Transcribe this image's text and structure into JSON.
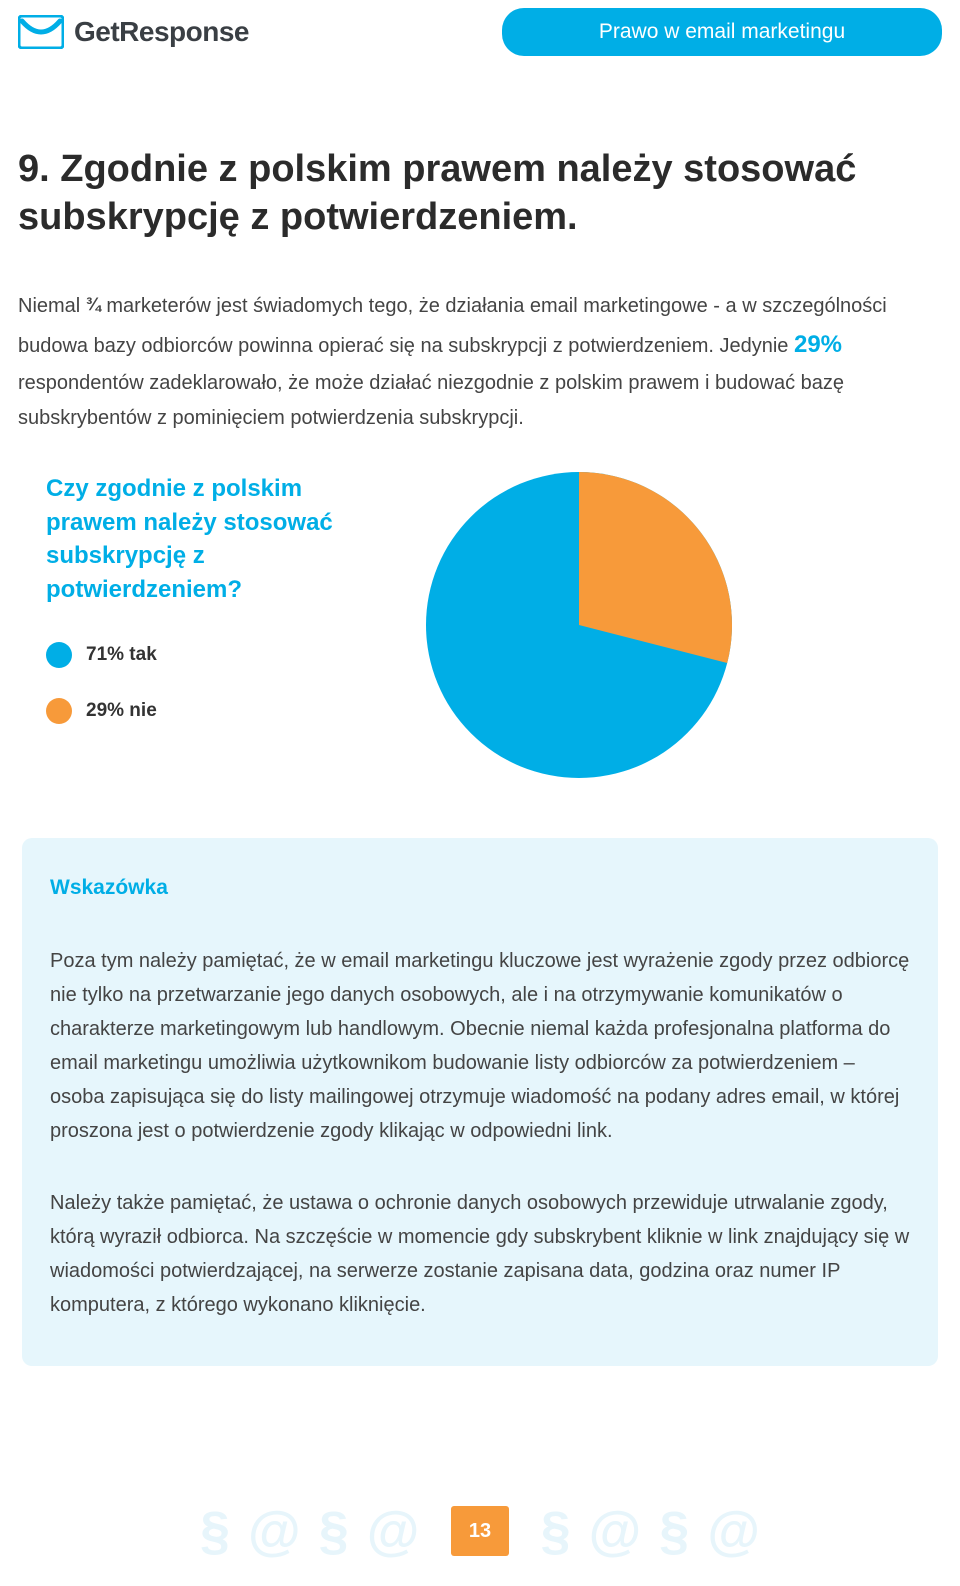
{
  "header": {
    "brand": "GetResponse",
    "pill": "Prawo w email marketingu"
  },
  "section": {
    "heading": "9. Zgodnie z polskim prawem należy stosować subskrypcję z potwierdzeniem.",
    "intro_pre": "Niemal ",
    "intro_frac": "¾",
    "intro_mid": " marketerów jest świadomych tego, że działania email marketingowe  - a w szczególności budowa bazy odbiorców powinna opierać się na subskrypcji z potwierdzeniem. Jedynie ",
    "intro_highlight": "29%",
    "intro_post": " respondentów zadeklarowało, że może działać niezgodnie z polskim prawem i budować bazę subskrybentów z pominięciem potwierdzenia subskrypcji."
  },
  "chart": {
    "question": "Czy zgodnie z polskim prawem należy stosować subskrypcję z potwierdzeniem?",
    "type": "pie",
    "radius": 153,
    "background_color": "#ffffff",
    "slices": [
      {
        "label": "71% tak",
        "value": 71,
        "color": "#00aee6"
      },
      {
        "label": "29% nie",
        "value": 29,
        "color": "#f79a3a"
      }
    ]
  },
  "tip": {
    "title": "Wskazówka",
    "p1": "Poza tym należy pamiętać, że w email marketingu kluczowe jest wyrażenie zgody przez odbiorcę nie tylko na przetwarzanie jego danych osobowych, ale i na otrzymywanie komunikatów o charakterze marketingowym lub handlowym. Obecnie niemal każda profesjonalna platforma do email marketingu umożliwia użytkownikom budowanie listy odbiorców za potwierdzeniem – osoba zapisująca się do listy mailingowej otrzymuje wiadomość na podany adres email, w której proszona jest o potwierdzenie zgody klikając w odpowiedni link.",
    "p2": "Należy także pamiętać, że ustawa o ochronie danych osobowych przewiduje utrwalanie zgody, którą wyraził odbiorca. Na szczęście w momencie gdy subskrybent kliknie w link znajdujący się w wiadomości potwierdzającej, na serwerze zostanie zapisana data, godzina oraz numer IP komputera, z którego wykonano kliknięcie."
  },
  "footer": {
    "page": "13",
    "deco_glyph_section": "§",
    "deco_glyph_at": "@"
  },
  "colors": {
    "brand_blue": "#00aee6",
    "orange": "#f79a3a",
    "tip_bg": "#e6f6fc",
    "deco": "#e7f5fb"
  }
}
